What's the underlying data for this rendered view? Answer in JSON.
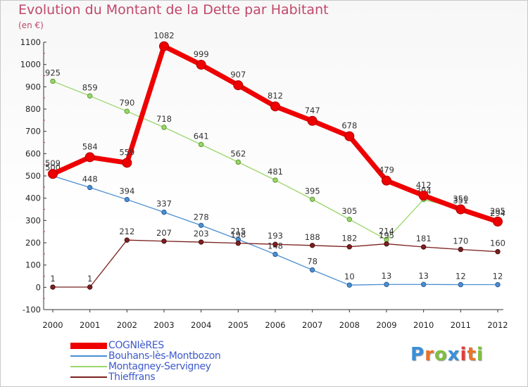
{
  "title": "Evolution du Montant de la Dette par Habitant",
  "subtitle": "(en €)",
  "logo": {
    "text": "Proxiti",
    "letter_colors": [
      "#3a8fd9",
      "#e8742b",
      "#7fbf3f",
      "#3a8fd9",
      "#e83a3a",
      "#e8742b",
      "#7fbf3f"
    ]
  },
  "chart_data": {
    "type": "line",
    "title": "Evolution du Montant de la Dette par Habitant",
    "ylabel": "(en €)",
    "x": [
      2000,
      2001,
      2002,
      2003,
      2004,
      2005,
      2006,
      2007,
      2008,
      2009,
      2010,
      2011,
      2012
    ],
    "ylim": [
      -100,
      1100
    ],
    "yticks": [
      -100,
      0,
      100,
      200,
      300,
      400,
      500,
      600,
      700,
      800,
      900,
      1000,
      1100
    ],
    "grid": false,
    "legend": "bottom-left",
    "series": [
      {
        "name": "Bouhans-lès-Montbozon",
        "color": "#4a8ed1",
        "values": [
          500,
          448,
          394,
          337,
          278,
          215,
          148,
          78,
          10,
          13,
          13,
          12,
          12
        ]
      },
      {
        "name": "Montagney-Servigney",
        "color": "#9ad66a",
        "values": [
          925,
          859,
          790,
          718,
          641,
          562,
          481,
          395,
          305,
          214,
          394,
          351,
          294
        ]
      },
      {
        "name": "Thieffrans",
        "color": "#7b2020",
        "values": [
          1,
          1,
          212,
          207,
          203,
          198,
          193,
          188,
          182,
          195,
          181,
          170,
          160
        ]
      },
      {
        "name": "COGNIèRES",
        "color": "#ee0000",
        "values": [
          509,
          584,
          559,
          1082,
          999,
          907,
          812,
          747,
          678,
          479,
          412,
          350,
          295
        ]
      }
    ]
  }
}
